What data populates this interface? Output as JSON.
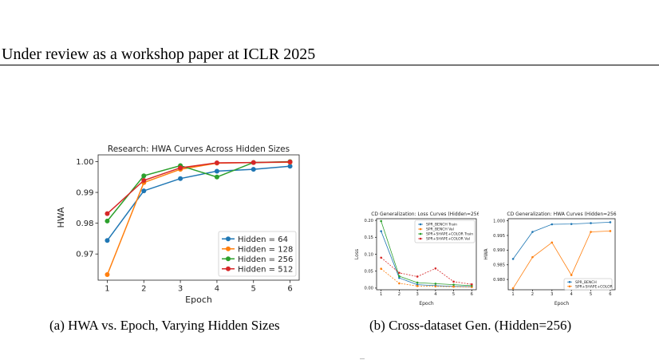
{
  "page": {
    "header": "Under review as a workshop paper at ICLR 2025",
    "caption_a": "(a)  HWA vs. Epoch, Varying Hidden Sizes",
    "caption_b": "(b)  Cross-dataset Gen. (Hidden=256)"
  },
  "chart_data": [
    {
      "type": "line",
      "title": "Research: HWA Curves Across Hidden Sizes",
      "xlabel": "Epoch",
      "ylabel": "HWA",
      "x": [
        1,
        2,
        3,
        4,
        5,
        6
      ],
      "xticks": [
        "1",
        "2",
        "3",
        "4",
        "5",
        "6"
      ],
      "yticks": [
        "0.97",
        "0.98",
        "0.99",
        "1.00"
      ],
      "ylim": [
        0.9615,
        1.0022
      ],
      "grid": false,
      "legend_position": "lower-right",
      "series": [
        {
          "name": "Hidden = 64",
          "color": "#1f77b4",
          "values": [
            0.9744,
            0.9905,
            0.9945,
            0.9969,
            0.9975,
            0.9985
          ],
          "line_style": "solid"
        },
        {
          "name": "Hidden = 128",
          "color": "#ff7f0e",
          "values": [
            0.9633,
            0.9932,
            0.9975,
            0.9995,
            0.9997,
            0.9998
          ],
          "line_style": "solid"
        },
        {
          "name": "Hidden = 256",
          "color": "#2ca02c",
          "values": [
            0.9807,
            0.9954,
            0.9987,
            0.995,
            0.9997,
            1.0
          ],
          "line_style": "solid"
        },
        {
          "name": "Hidden = 512",
          "color": "#d62728",
          "values": [
            0.9831,
            0.9939,
            0.998,
            0.9996,
            0.9997,
            0.9999
          ],
          "line_style": "solid"
        }
      ]
    },
    {
      "type": "line",
      "title": "CD Generalization: Loss Curves (Hidden=256)",
      "xlabel": "Epoch",
      "ylabel": "Loss",
      "x": [
        1,
        2,
        3,
        4,
        5,
        6
      ],
      "xticks": [
        "1",
        "2",
        "3",
        "4",
        "5",
        "6"
      ],
      "yticks": [
        "0.00",
        "0.05",
        "0.10",
        "0.15",
        "0.20"
      ],
      "ylim": [
        -0.005,
        0.205
      ],
      "grid": false,
      "legend_position": "top-right",
      "series": [
        {
          "name": "SPR_BENCH Train",
          "color": "#1f77b4",
          "values": [
            0.168,
            0.03,
            0.01,
            0.007,
            0.005,
            0.004
          ],
          "line_style": "solid"
        },
        {
          "name": "SPR_BENCH Val",
          "color": "#ff7f0e",
          "values": [
            0.057,
            0.014,
            0.006,
            0.005,
            0.004,
            0.003
          ],
          "line_style": "dashed"
        },
        {
          "name": "SPR+SHAPE+COLOR Train",
          "color": "#2ca02c",
          "values": [
            0.198,
            0.035,
            0.016,
            0.013,
            0.01,
            0.007
          ],
          "line_style": "solid"
        },
        {
          "name": "SPR+SHAPE+COLOR Val",
          "color": "#d62728",
          "values": [
            0.09,
            0.045,
            0.034,
            0.058,
            0.019,
            0.011
          ],
          "line_style": "dashed"
        }
      ]
    },
    {
      "type": "line",
      "title": "CD Generalization: HWA Curves (Hidden=256",
      "xlabel": "Epoch",
      "ylabel": "HWA",
      "x": [
        1,
        2,
        3,
        4,
        5,
        6
      ],
      "xticks": [
        "1",
        "2",
        "3",
        "4",
        "5",
        "6"
      ],
      "yticks": [
        "0.980",
        "0.985",
        "0.990",
        "0.995",
        "1.000"
      ],
      "ylim": [
        0.9765,
        1.0007
      ],
      "grid": false,
      "legend_position": "lower-right",
      "series": [
        {
          "name": "SPR_BENCH",
          "color": "#1f77b4",
          "values": [
            0.987,
            0.9962,
            0.9988,
            0.9989,
            0.9992,
            0.9995
          ],
          "line_style": "solid"
        },
        {
          "name": "SPR+SHAPE+COLOR",
          "color": "#ff7f0e",
          "values": [
            0.977,
            0.9876,
            0.9926,
            0.9815,
            0.9962,
            0.9965
          ],
          "line_style": "solid"
        }
      ]
    }
  ]
}
